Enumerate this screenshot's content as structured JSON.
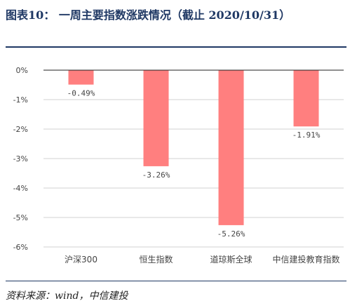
{
  "header": {
    "title": "图表10： 一周主要指数涨跌情况（截止 2020/10/31）"
  },
  "footer": {
    "source": "资料来源：wind，中信建投"
  },
  "chart_data": {
    "type": "bar",
    "title": "",
    "xlabel": "",
    "ylabel": "",
    "categories": [
      "沪深300",
      "恒生指数",
      "道琼斯全球",
      "中信建投教育指数"
    ],
    "values": [
      -0.49,
      -3.26,
      -5.26,
      -1.91
    ],
    "data_labels": [
      "-0.49%",
      "-3.26%",
      "-5.26%",
      "-1.91%"
    ],
    "ylim": [
      -6,
      0
    ],
    "yticks": [
      0,
      -1,
      -2,
      -3,
      -4,
      -5,
      -6
    ],
    "ytick_labels": [
      "0%",
      "-1%",
      "-2%",
      "-3%",
      "-4%",
      "-5%",
      "-6%"
    ],
    "grid": true,
    "colors": {
      "bar": "#ff7f7f",
      "grid": "#d0d0d0",
      "axis": "#222222",
      "text": "#444444"
    }
  }
}
